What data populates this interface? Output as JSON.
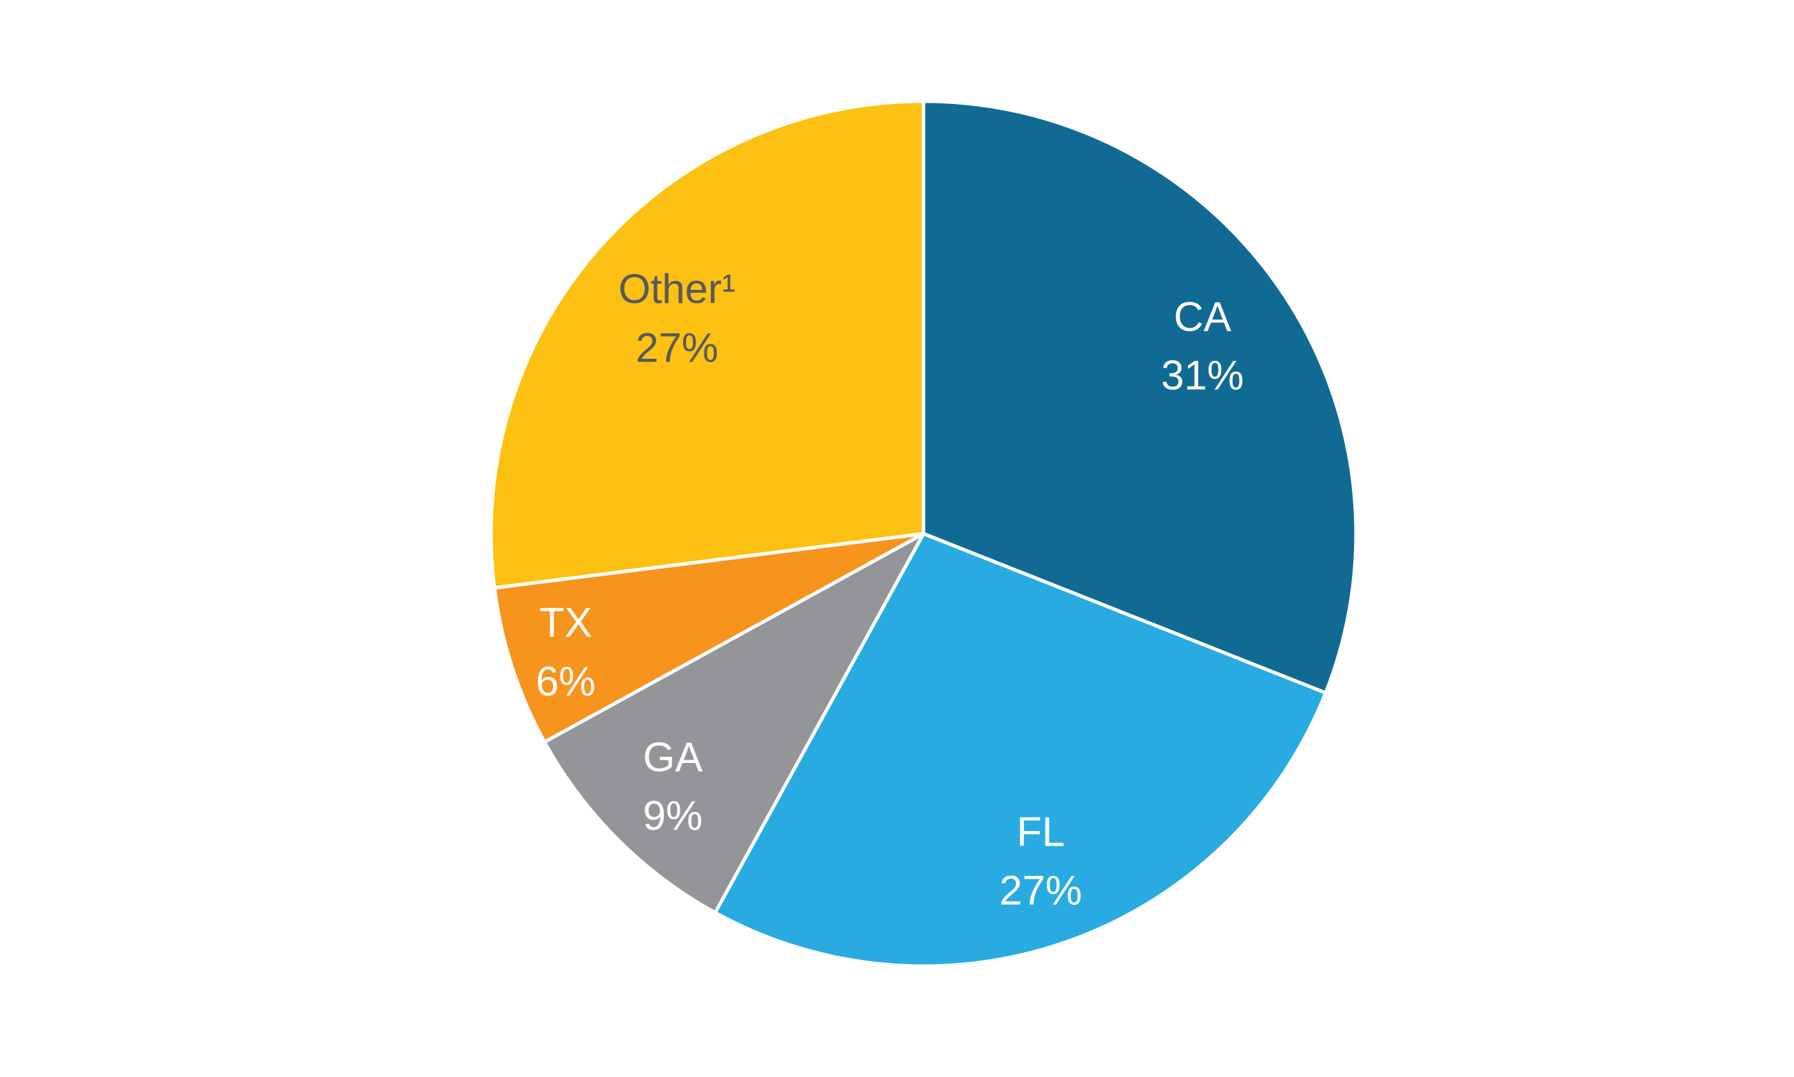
{
  "chart_data": {
    "type": "pie",
    "title": "",
    "legend": "none",
    "start_angle_deg": 0,
    "direction": "clockwise",
    "background": "#ffffff",
    "separator_color": "#ffffff",
    "separator_width": 5,
    "categories": [
      "CA",
      "FL",
      "GA",
      "TX",
      "Other¹"
    ],
    "values": [
      31,
      27,
      9,
      6,
      27
    ],
    "slices": [
      {
        "id": "ca",
        "label": "CA",
        "percent_label": "31%",
        "value": 31,
        "color": "#116a94",
        "text_color": "#ffffff",
        "label_radius": 0.78
      },
      {
        "id": "fl",
        "label": "FL",
        "percent_label": "27%",
        "value": 27,
        "color": "#29abe2",
        "text_color": "#ffffff",
        "label_radius": 0.8
      },
      {
        "id": "ga",
        "label": "GA",
        "percent_label": "9%",
        "value": 9,
        "color": "#939598",
        "text_color": "#ffffff",
        "label_radius": 0.82
      },
      {
        "id": "tx",
        "label": "TX",
        "percent_label": "6%",
        "value": 6,
        "color": "#f7941e",
        "text_color": "#ffffff",
        "label_radius": 0.87
      },
      {
        "id": "other",
        "label": "Other¹",
        "percent_label": "27%",
        "value": 27,
        "color": "#fdc113",
        "text_color": "#58595b",
        "label_radius": 0.76
      }
    ]
  }
}
